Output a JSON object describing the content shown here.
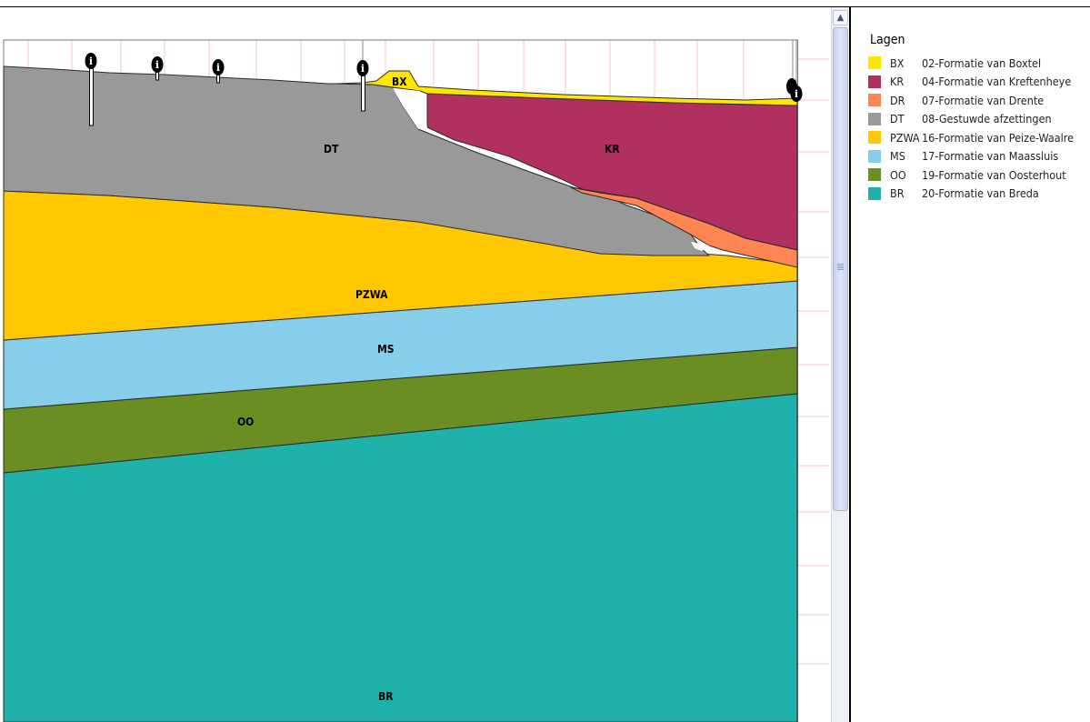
{
  "legend": {
    "title": "Lagen",
    "items": [
      {
        "code": "BX",
        "name": "02-Formatie van Boxtel",
        "color": "#FFE600"
      },
      {
        "code": "KR",
        "name": "04-Formatie van Kreftenheye",
        "color": "#B0305F"
      },
      {
        "code": "DR",
        "name": "07-Formatie van Drente",
        "color": "#FF8552"
      },
      {
        "code": "DT",
        "name": "08-Gestuwde afzettingen",
        "color": "#999999"
      },
      {
        "code": "PZWA",
        "name": "16-Formatie van Peize-Waalre",
        "color": "#FFC800"
      },
      {
        "code": "MS",
        "name": "17-Formatie van Maassluis",
        "color": "#87CEEB"
      },
      {
        "code": "OO",
        "name": "19-Formatie van Oosterhout",
        "color": "#6B8E23"
      },
      {
        "code": "BR",
        "name": "20-Formatie van Breda",
        "color": "#20B2AA"
      }
    ]
  },
  "section": {
    "labels": {
      "bx": "BX",
      "dt": "DT",
      "kr": "KR",
      "pzwa": "PZWA",
      "ms": "MS",
      "oo": "OO",
      "br": "BR"
    },
    "boreholes": [
      {
        "id": "borehole-1",
        "marker": "i"
      },
      {
        "id": "borehole-2",
        "marker": "i"
      },
      {
        "id": "borehole-3",
        "marker": "i"
      },
      {
        "id": "borehole-4",
        "marker": "i"
      },
      {
        "id": "borehole-5",
        "marker": "i"
      }
    ]
  },
  "scrollbar": {
    "up_arrow_icon": "chevron-up-icon"
  }
}
